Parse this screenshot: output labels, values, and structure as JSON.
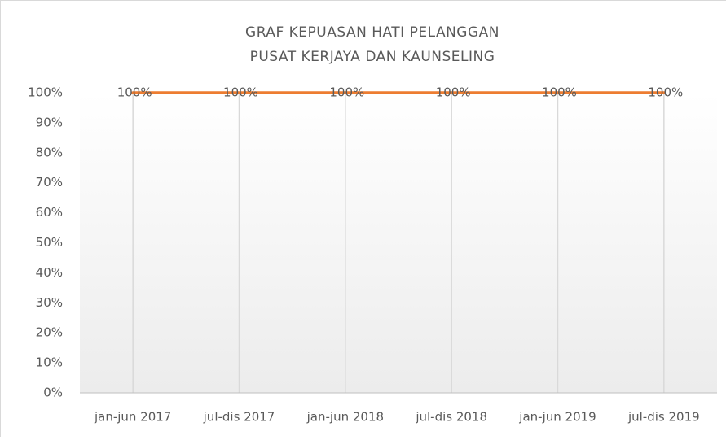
{
  "chart_data": {
    "type": "line",
    "title": "GRAF KEPUASAN HATI PELANGGAN",
    "subtitle": "PUSAT KERJAYA DAN KAUNSELING",
    "categories": [
      "jan-jun 2017",
      "jul-dis 2017",
      "jan-jun 2018",
      "jul-dis 2018",
      "jan-jun 2019",
      "jul-dis 2019"
    ],
    "values": [
      100,
      100,
      100,
      100,
      100,
      100
    ],
    "value_labels": [
      "100%",
      "100%",
      "100%",
      "100%",
      "100%",
      "100%"
    ],
    "color": "#ed7d31",
    "ylim": [
      0,
      100
    ],
    "yticks": [
      {
        "value": 0,
        "label": "0%"
      },
      {
        "value": 10,
        "label": "10%"
      },
      {
        "value": 20,
        "label": "20%"
      },
      {
        "value": 30,
        "label": "30%"
      },
      {
        "value": 40,
        "label": "40%"
      },
      {
        "value": 50,
        "label": "50%"
      },
      {
        "value": 60,
        "label": "60%"
      },
      {
        "value": 70,
        "label": "70%"
      },
      {
        "value": 80,
        "label": "80%"
      },
      {
        "value": 90,
        "label": "90%"
      },
      {
        "value": 100,
        "label": "100%"
      }
    ],
    "grid": false,
    "x_grid": true
  }
}
